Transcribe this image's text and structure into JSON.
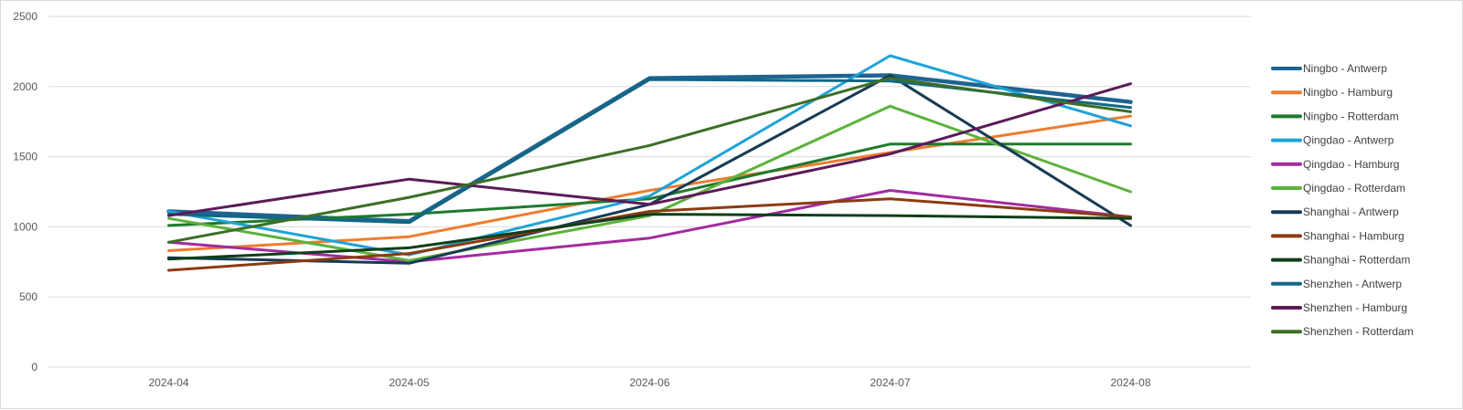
{
  "chart_data": {
    "type": "line",
    "title": "",
    "xlabel": "",
    "ylabel": "",
    "categories": [
      "2024-04",
      "2024-05",
      "2024-06",
      "2024-07",
      "2024-08"
    ],
    "ylim": [
      0,
      2500
    ],
    "yticks": [
      0,
      500,
      1000,
      1500,
      2000,
      2500
    ],
    "grid": true,
    "legend": "right",
    "series": [
      {
        "name": "Ningbo - Antwerp",
        "color": "#1f6391",
        "values": [
          1110,
          1040,
          2060,
          2080,
          1890
        ]
      },
      {
        "name": "Ningbo - Hamburg",
        "color": "#ed7d31",
        "values": [
          830,
          930,
          1260,
          1530,
          1790
        ]
      },
      {
        "name": "Ningbo - Rotterdam",
        "color": "#1e7a2e",
        "values": [
          1010,
          1090,
          1200,
          1590,
          1590
        ]
      },
      {
        "name": "Qingdao - Antwerp",
        "color": "#1ea3d8",
        "values": [
          1110,
          800,
          1220,
          2220,
          1720
        ]
      },
      {
        "name": "Qingdao - Hamburg",
        "color": "#a32ba0",
        "values": [
          890,
          750,
          920,
          1260,
          1070
        ]
      },
      {
        "name": "Qingdao - Rotterdam",
        "color": "#5db23c",
        "values": [
          1060,
          760,
          1080,
          1860,
          1250
        ]
      },
      {
        "name": "Shanghai - Antwerp",
        "color": "#173b55",
        "values": [
          780,
          740,
          1160,
          2080,
          1010
        ]
      },
      {
        "name": "Shanghai - Hamburg",
        "color": "#8b3b12",
        "values": [
          690,
          810,
          1110,
          1200,
          1070
        ]
      },
      {
        "name": "Shanghai - Rotterdam",
        "color": "#0f3f1a",
        "values": [
          770,
          850,
          1090,
          1080,
          1060
        ]
      },
      {
        "name": "Shenzhen - Antwerp",
        "color": "#126783",
        "values": [
          1090,
          1030,
          2050,
          2040,
          1850
        ]
      },
      {
        "name": "Shenzhen - Hamburg",
        "color": "#5c1a5a",
        "values": [
          1080,
          1340,
          1160,
          1520,
          2020
        ]
      },
      {
        "name": "Shenzhen - Rotterdam",
        "color": "#3b6f26",
        "values": [
          890,
          1210,
          1580,
          2060,
          1820
        ]
      }
    ]
  }
}
